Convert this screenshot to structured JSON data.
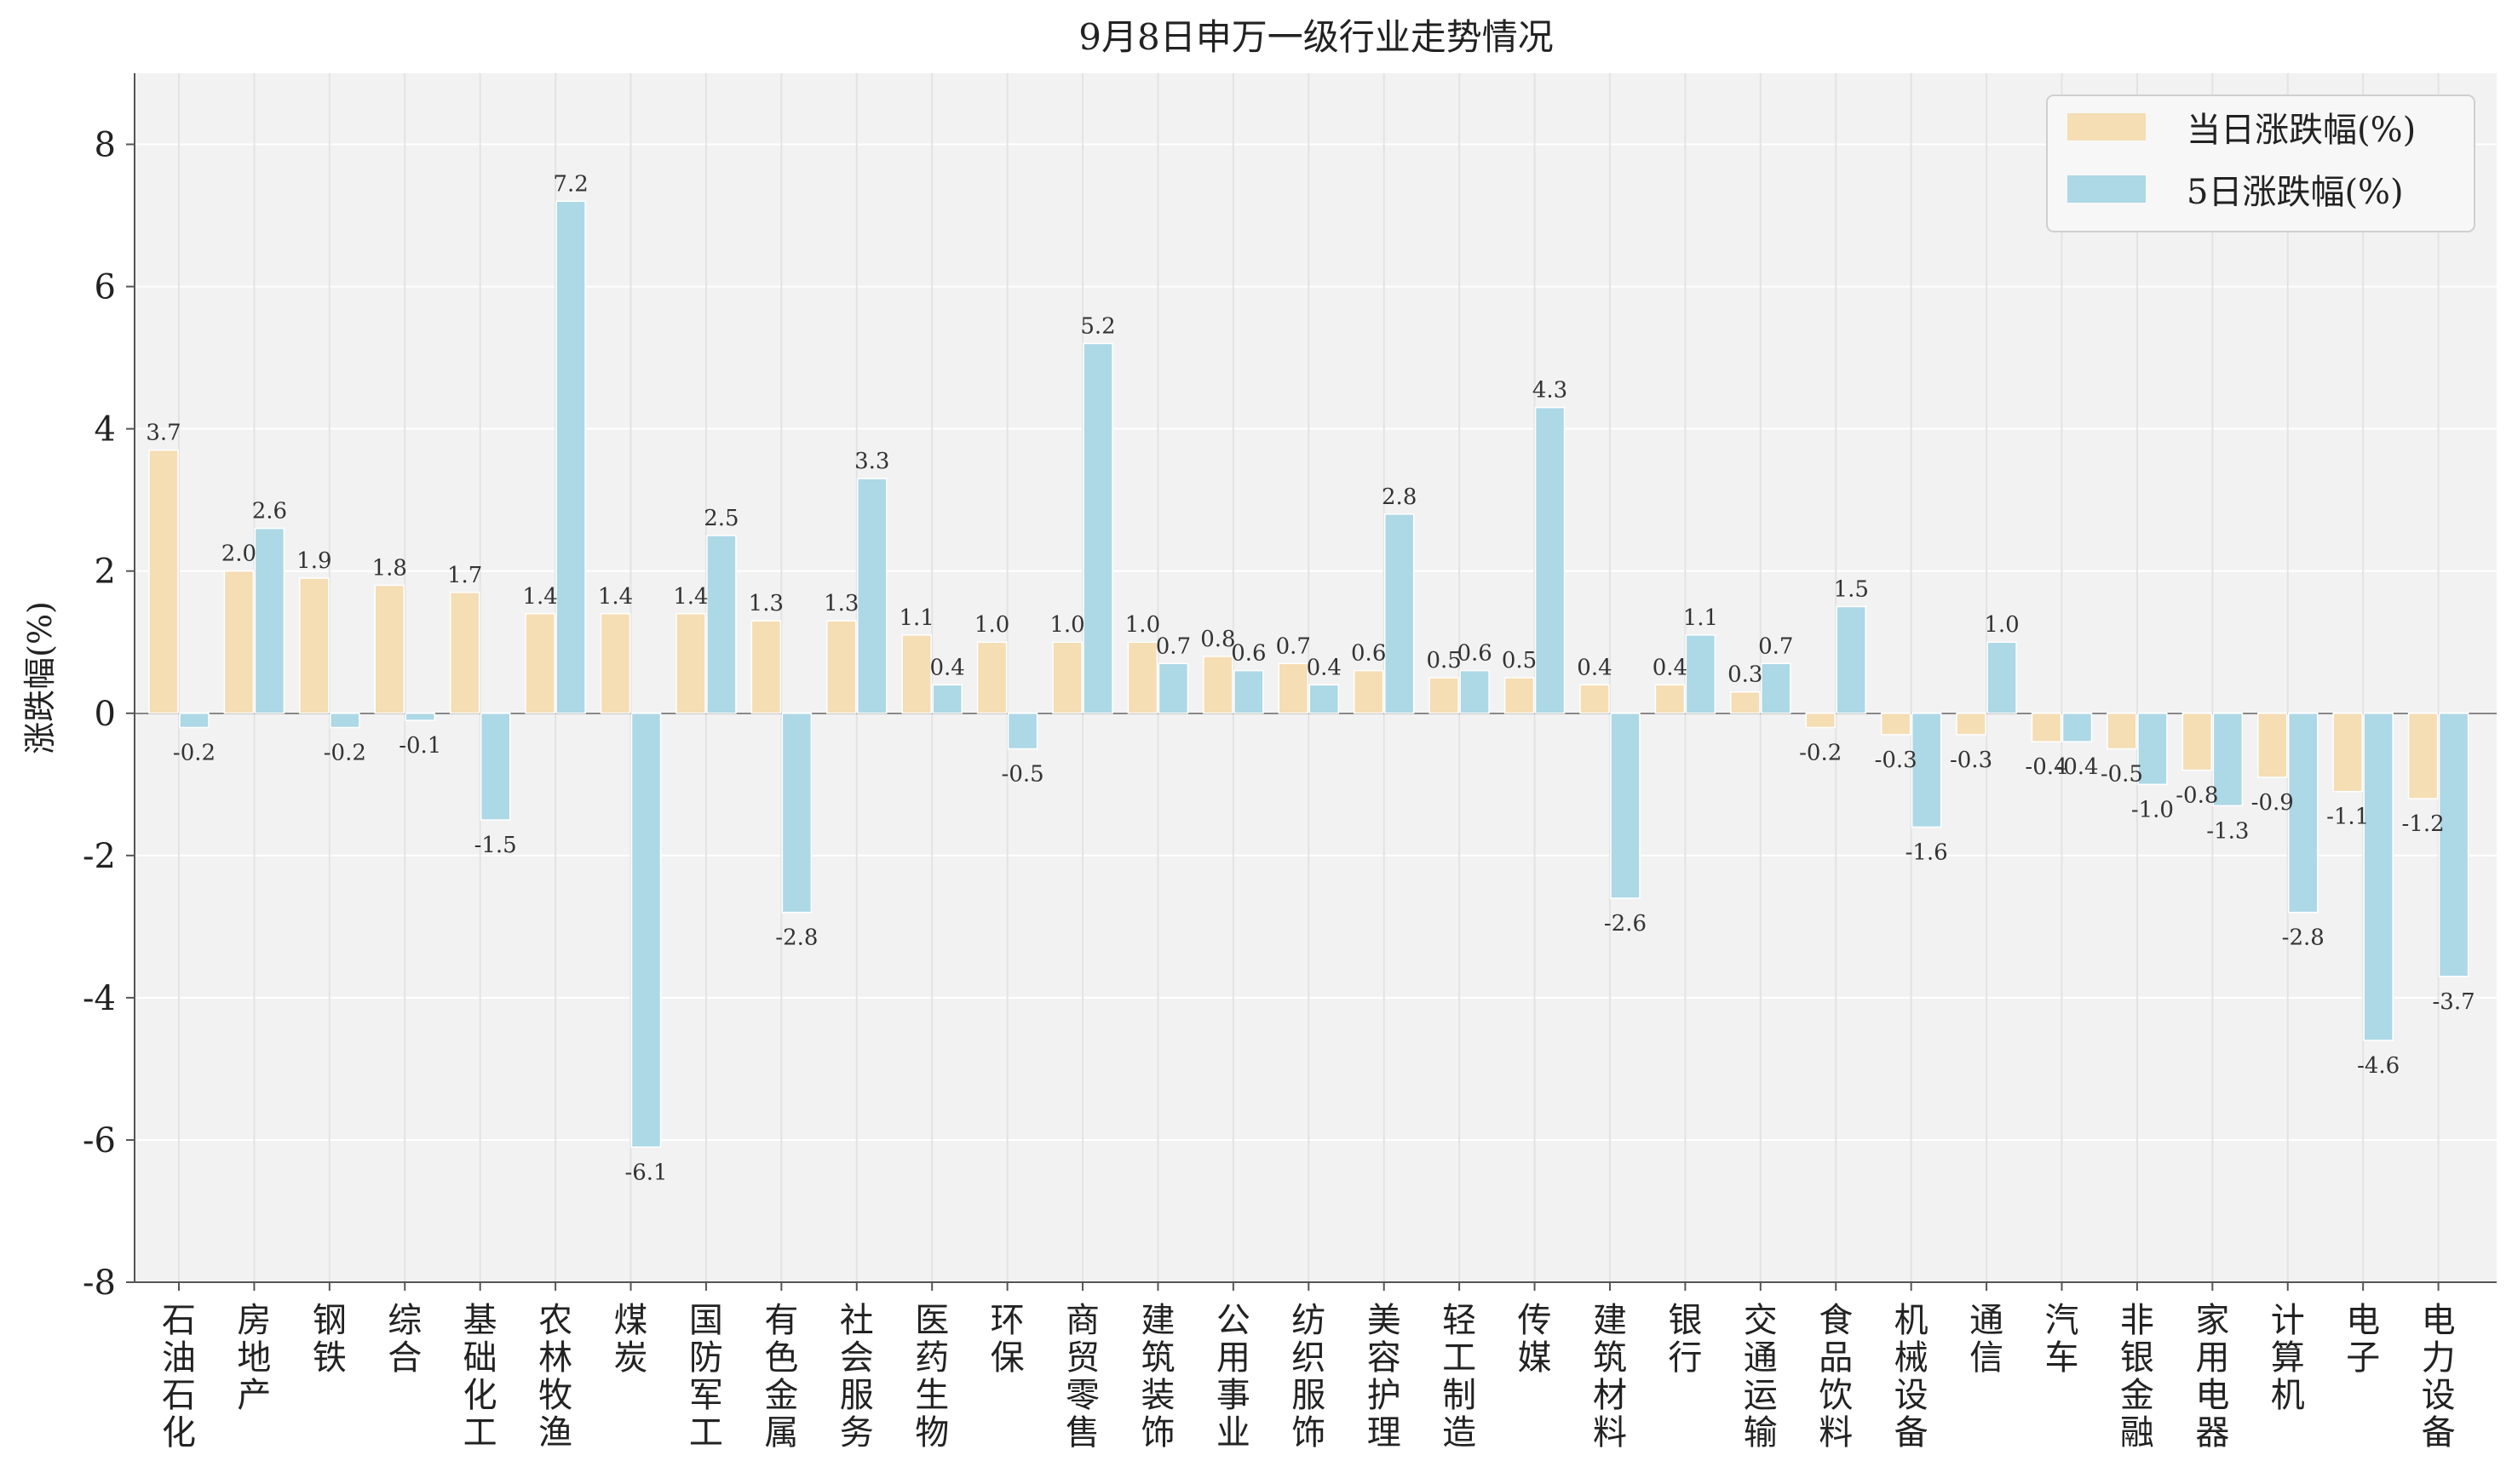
{
  "chart_data": {
    "type": "bar",
    "title": "9月8日申万一级行业走势情况",
    "ylabel": "涨跌幅(%)",
    "xlabel": "",
    "ylim": [
      -8,
      9
    ],
    "yticks": [
      8,
      6,
      4,
      2,
      0,
      -2,
      -4,
      -6,
      -8
    ],
    "grid": true,
    "legend_position": "top-right",
    "categories": [
      "石油石化",
      "房地产",
      "钢铁",
      "综合",
      "基础化工",
      "农林牧渔",
      "煤炭",
      "国防军工",
      "有色金属",
      "社会服务",
      "医药生物",
      "环保",
      "商贸零售",
      "建筑装饰",
      "公用事业",
      "纺织服饰",
      "美容护理",
      "轻工制造",
      "传媒",
      "建筑材料",
      "银行",
      "交通运输",
      "食品饮料",
      "机械设备",
      "通信",
      "汽车",
      "非银金融",
      "家用电器",
      "计算机",
      "电子",
      "电力设备"
    ],
    "series": [
      {
        "name": "当日涨跌幅(%)",
        "color": "#f5ddb4",
        "values": [
          3.7,
          2.0,
          1.9,
          1.8,
          1.7,
          1.4,
          1.4,
          1.4,
          1.3,
          1.3,
          1.1,
          1.0,
          1.0,
          1.0,
          0.8,
          0.7,
          0.6,
          0.5,
          0.5,
          0.4,
          0.4,
          0.3,
          -0.2,
          -0.3,
          -0.3,
          -0.4,
          -0.5,
          -0.8,
          -0.9,
          -1.1,
          -1.2
        ],
        "labels": [
          "3.7",
          "2.0",
          "1.9",
          "1.8",
          "1.7",
          "1.4",
          "1.4",
          "1.4",
          "1.3",
          "1.3",
          "1.1",
          "1.0",
          "1.0",
          "1.0",
          "0.8",
          "0.7",
          "0.6",
          "0.5",
          "0.5",
          "0.4",
          "0.4",
          "0.3",
          "-0.2",
          "-0.3",
          "-0.3",
          "-0.4",
          "-0.5",
          "-0.8",
          "-0.9",
          "-1.1",
          "-1.2"
        ]
      },
      {
        "name": "5日涨跌幅(%)",
        "color": "#add8e6",
        "values": [
          -0.2,
          2.6,
          -0.2,
          -0.1,
          -1.5,
          7.2,
          -6.1,
          2.5,
          -2.8,
          3.3,
          0.4,
          -0.5,
          5.2,
          0.7,
          0.6,
          0.4,
          2.8,
          0.6,
          4.3,
          -2.6,
          1.1,
          0.7,
          1.5,
          -1.6,
          1.0,
          -0.4,
          -1.0,
          -1.3,
          -2.8,
          -4.6,
          -3.7
        ],
        "labels": [
          "-0.2",
          "2.6",
          "-0.2",
          "-0.1",
          "-1.5",
          "7.2",
          "-6.1",
          "2.5",
          "-2.8",
          "3.3",
          "0.4",
          "-0.5",
          "5.2",
          "0.7",
          "0.6",
          "0.4",
          "2.8",
          "0.6",
          "4.3",
          "-2.6",
          "1.1",
          "0.7",
          "1.5",
          "-1.6",
          "1.0",
          "-0.4",
          "-1.0",
          "-1.3",
          "-2.8",
          "-4.6",
          "-3.7"
        ]
      }
    ]
  }
}
